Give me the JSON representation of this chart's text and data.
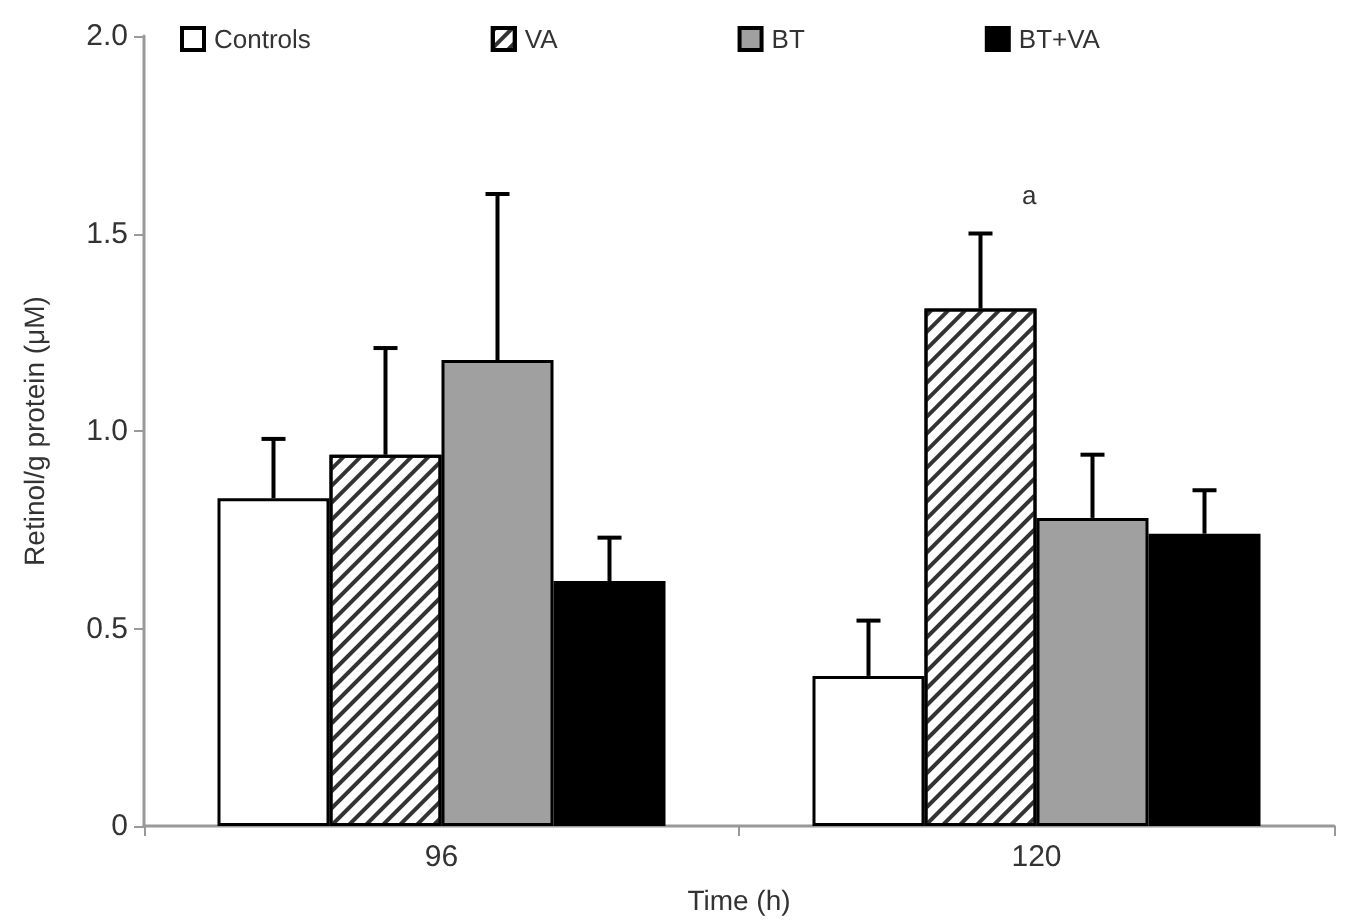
{
  "chart_data": {
    "type": "bar",
    "xlabel": "Time (h)",
    "ylabel": "Retinol/g protein (μM)",
    "categories": [
      "96",
      "120"
    ],
    "series": [
      {
        "name": "Controls",
        "color": "#ffffff",
        "values": [
          0.83,
          0.38
        ],
        "errors": [
          [
            0.83,
            0.98
          ],
          [
            0.38,
            0.52
          ]
        ]
      },
      {
        "name": "VA",
        "color": "#ffffff",
        "values": [
          0.94,
          1.31
        ],
        "errors": [
          [
            0.94,
            1.21
          ],
          [
            1.31,
            1.5
          ]
        ]
      },
      {
        "name": "BT",
        "color": "#a0a0a0",
        "values": [
          1.18,
          0.78
        ],
        "errors": [
          [
            1.18,
            1.6
          ],
          [
            0.78,
            0.94
          ]
        ]
      },
      {
        "name": "BT+VA",
        "color": "#000000",
        "values": [
          0.62,
          0.74
        ],
        "errors": [
          [
            0.62,
            0.73
          ],
          [
            0.74,
            0.85
          ]
        ]
      }
    ],
    "ylim": [
      0,
      2
    ],
    "yticks": [
      0,
      0.5,
      {
        "value": 1,
        "label": "1.0"
      },
      1.5,
      {
        "value": 2,
        "label": "2.0"
      }
    ],
    "annotations": [
      "a"
    ],
    "grid": false,
    "legend": "top"
  }
}
